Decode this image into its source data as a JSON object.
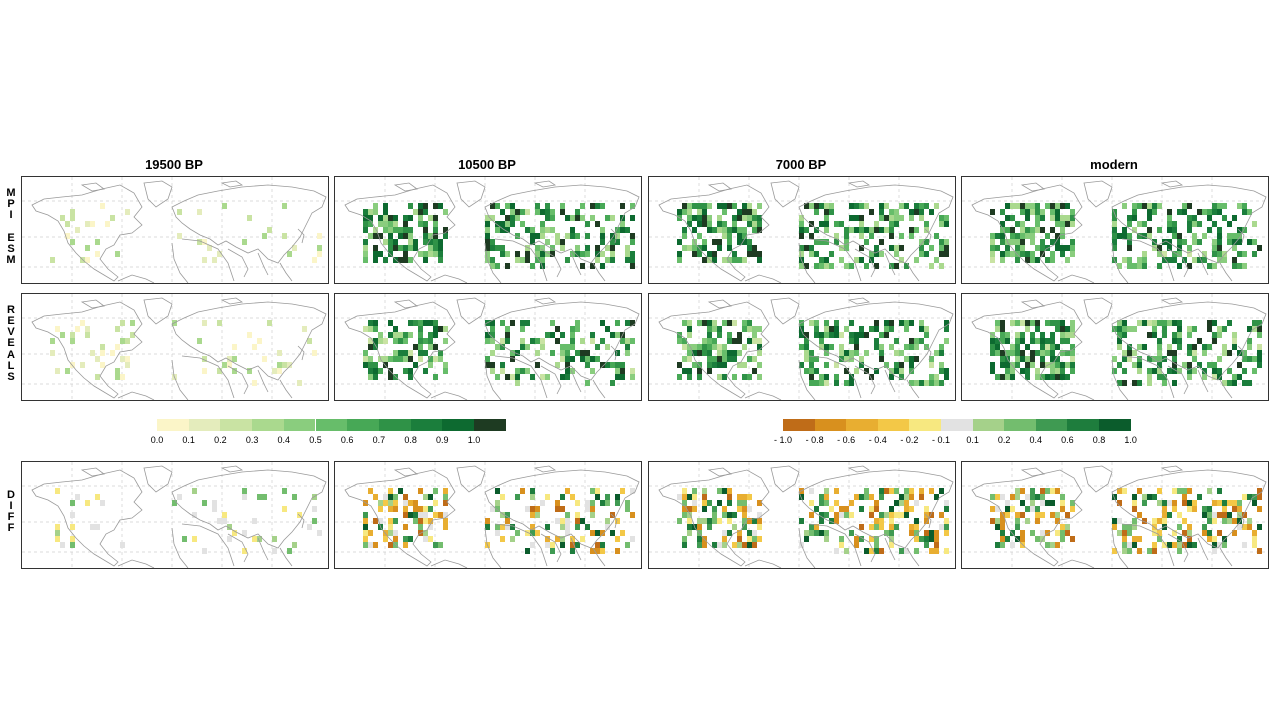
{
  "columns": [
    "19500 BP",
    "10500 BP",
    "7000 BP",
    "modern"
  ],
  "rows": [
    {
      "id": "mpi",
      "label": "M\nP\nI\n \nE\nS\nM"
    },
    {
      "id": "reveals",
      "label": "R\nE\nV\nE\nA\nL\nS"
    },
    {
      "id": "diff",
      "label": "D\nI\nF\nF"
    }
  ],
  "colorbars": {
    "cover": {
      "tick_labels": [
        "0.0",
        "0.1",
        "0.2",
        "0.3",
        "0.4",
        "0.5",
        "0.6",
        "0.7",
        "0.8",
        "0.9",
        "1.0"
      ],
      "colors": [
        "#fbf5c8",
        "#e4ecbc",
        "#c9e3a3",
        "#aad98e",
        "#8acd7e",
        "#67bd6a",
        "#47a856",
        "#2f9247",
        "#1b7e3c",
        "#0d6a30",
        "#1e3b22"
      ]
    },
    "diff": {
      "tick_labels": [
        "- 1.0",
        "- 0.8",
        "- 0.6",
        "- 0.4",
        "- 0.2",
        "- 0.1",
        "0.1",
        "0.2",
        "0.4",
        "0.6",
        "0.8",
        "1.0"
      ],
      "colors": [
        "#bf6c18",
        "#d8901e",
        "#e8ae31",
        "#f3c847",
        "#f7e880",
        "#e2e2e2",
        "#a5d18a",
        "#73bd6e",
        "#3f9a52",
        "#1e7d3d",
        "#0b5c2c"
      ]
    }
  },
  "chart_data": {
    "type": "heatmap",
    "description_grid": "3 rows x 4 columns of map panels (North America and Eurasia gridded values)",
    "rows": [
      "MPI ESM",
      "REVEALS",
      "DIFF"
    ],
    "columns": [
      "19500 BP",
      "10500 BP",
      "7000 BP",
      "modern"
    ],
    "cover_scale": {
      "min": 0.0,
      "max": 1.0,
      "step": 0.1
    },
    "diff_scale": {
      "ticks": [
        -1.0,
        -0.8,
        -0.6,
        -0.4,
        -0.2,
        -0.1,
        0.1,
        0.2,
        0.4,
        0.6,
        0.8,
        1.0
      ]
    },
    "grid": true
  }
}
